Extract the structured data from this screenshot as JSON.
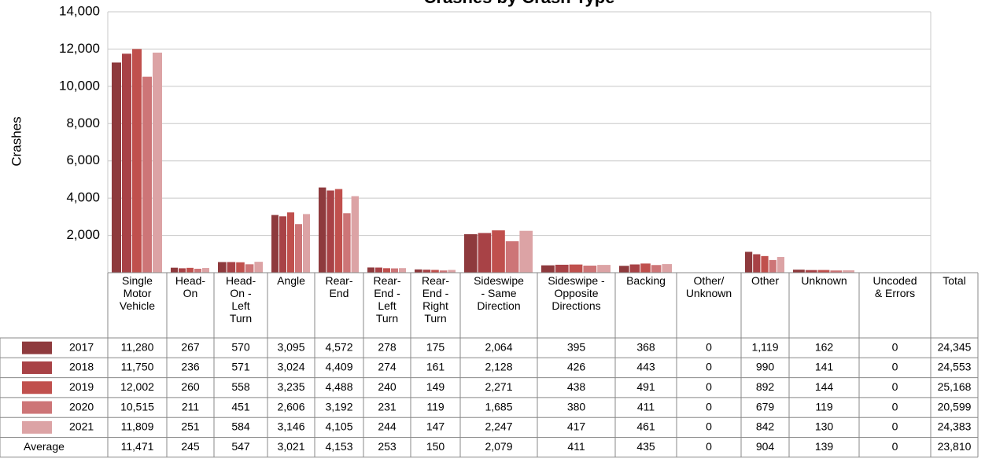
{
  "chart_data": {
    "type": "bar",
    "title": "Crashes by Crash Type",
    "y_label": "Crashes",
    "categories": [
      "Single Motor Vehicle",
      "Head-On",
      "Head-On - Left Turn",
      "Angle",
      "Rear-End",
      "Rear-End - Left Turn",
      "Rear-End - Right Turn",
      "Sideswipe - Same Direction",
      "Sideswipe - Opposite Directions",
      "Backing",
      "Other/ Unknown",
      "Other",
      "Unknown",
      "Uncoded & Errors"
    ],
    "series": [
      {
        "name": "2017",
        "color": "#8e3a3d",
        "values": [
          11280,
          267,
          570,
          3095,
          4572,
          278,
          175,
          2064,
          395,
          368,
          0,
          1119,
          162,
          0
        ],
        "value_labels": [
          "11,280",
          "267",
          "570",
          "3,095",
          "4,572",
          "278",
          "175",
          "2,064",
          "395",
          "368",
          "0",
          "1,119",
          "162",
          "0"
        ],
        "total": 24345,
        "total_label": "24,345"
      },
      {
        "name": "2018",
        "color": "#a84246",
        "values": [
          11750,
          236,
          571,
          3024,
          4409,
          274,
          161,
          2128,
          426,
          443,
          0,
          990,
          141,
          0
        ],
        "value_labels": [
          "11,750",
          "236",
          "571",
          "3,024",
          "4,409",
          "274",
          "161",
          "2,128",
          "426",
          "443",
          "0",
          "990",
          "141",
          "0"
        ],
        "total": 24553,
        "total_label": "24,553"
      },
      {
        "name": "2019",
        "color": "#c0504d",
        "values": [
          12002,
          260,
          558,
          3235,
          4488,
          240,
          149,
          2271,
          438,
          491,
          0,
          892,
          144,
          0
        ],
        "value_labels": [
          "12,002",
          "260",
          "558",
          "3,235",
          "4,488",
          "240",
          "149",
          "2,271",
          "438",
          "491",
          "0",
          "892",
          "144",
          "0"
        ],
        "total": 25168,
        "total_label": "25,168"
      },
      {
        "name": "2020",
        "color": "#cd7577",
        "values": [
          10515,
          211,
          451,
          2606,
          3192,
          231,
          119,
          1685,
          380,
          411,
          0,
          679,
          119,
          0
        ],
        "value_labels": [
          "10,515",
          "211",
          "451",
          "2,606",
          "3,192",
          "231",
          "119",
          "1,685",
          "380",
          "411",
          "0",
          "679",
          "119",
          "0"
        ],
        "total": 20599,
        "total_label": "20,599"
      },
      {
        "name": "2021",
        "color": "#dca3a5",
        "values": [
          11809,
          251,
          584,
          3146,
          4105,
          244,
          147,
          2247,
          417,
          461,
          0,
          842,
          130,
          0
        ],
        "value_labels": [
          "11,809",
          "251",
          "584",
          "3,146",
          "4,105",
          "244",
          "147",
          "2,247",
          "417",
          "461",
          "0",
          "842",
          "130",
          "0"
        ],
        "total": 24383,
        "total_label": "24,383"
      }
    ],
    "total_header": "Total",
    "average": {
      "name": "Average",
      "values": [
        11471,
        245,
        547,
        3021,
        4153,
        253,
        150,
        2079,
        411,
        435,
        0,
        904,
        139,
        0
      ],
      "value_labels": [
        "11,471",
        "245",
        "547",
        "3,021",
        "4,153",
        "253",
        "150",
        "2,079",
        "411",
        "435",
        "0",
        "904",
        "139",
        "0"
      ],
      "total": 23810,
      "total_label": "23,810"
    },
    "ylim": [
      0,
      14000
    ],
    "yticks": [
      {
        "value": 2000,
        "label": "2,000"
      },
      {
        "value": 4000,
        "label": "4,000"
      },
      {
        "value": 6000,
        "label": "6,000"
      },
      {
        "value": 8000,
        "label": "8,000"
      },
      {
        "value": 10000,
        "label": "10,000"
      },
      {
        "value": 12000,
        "label": "12,000"
      },
      {
        "value": 14000,
        "label": "14,000"
      }
    ],
    "grid": true
  }
}
